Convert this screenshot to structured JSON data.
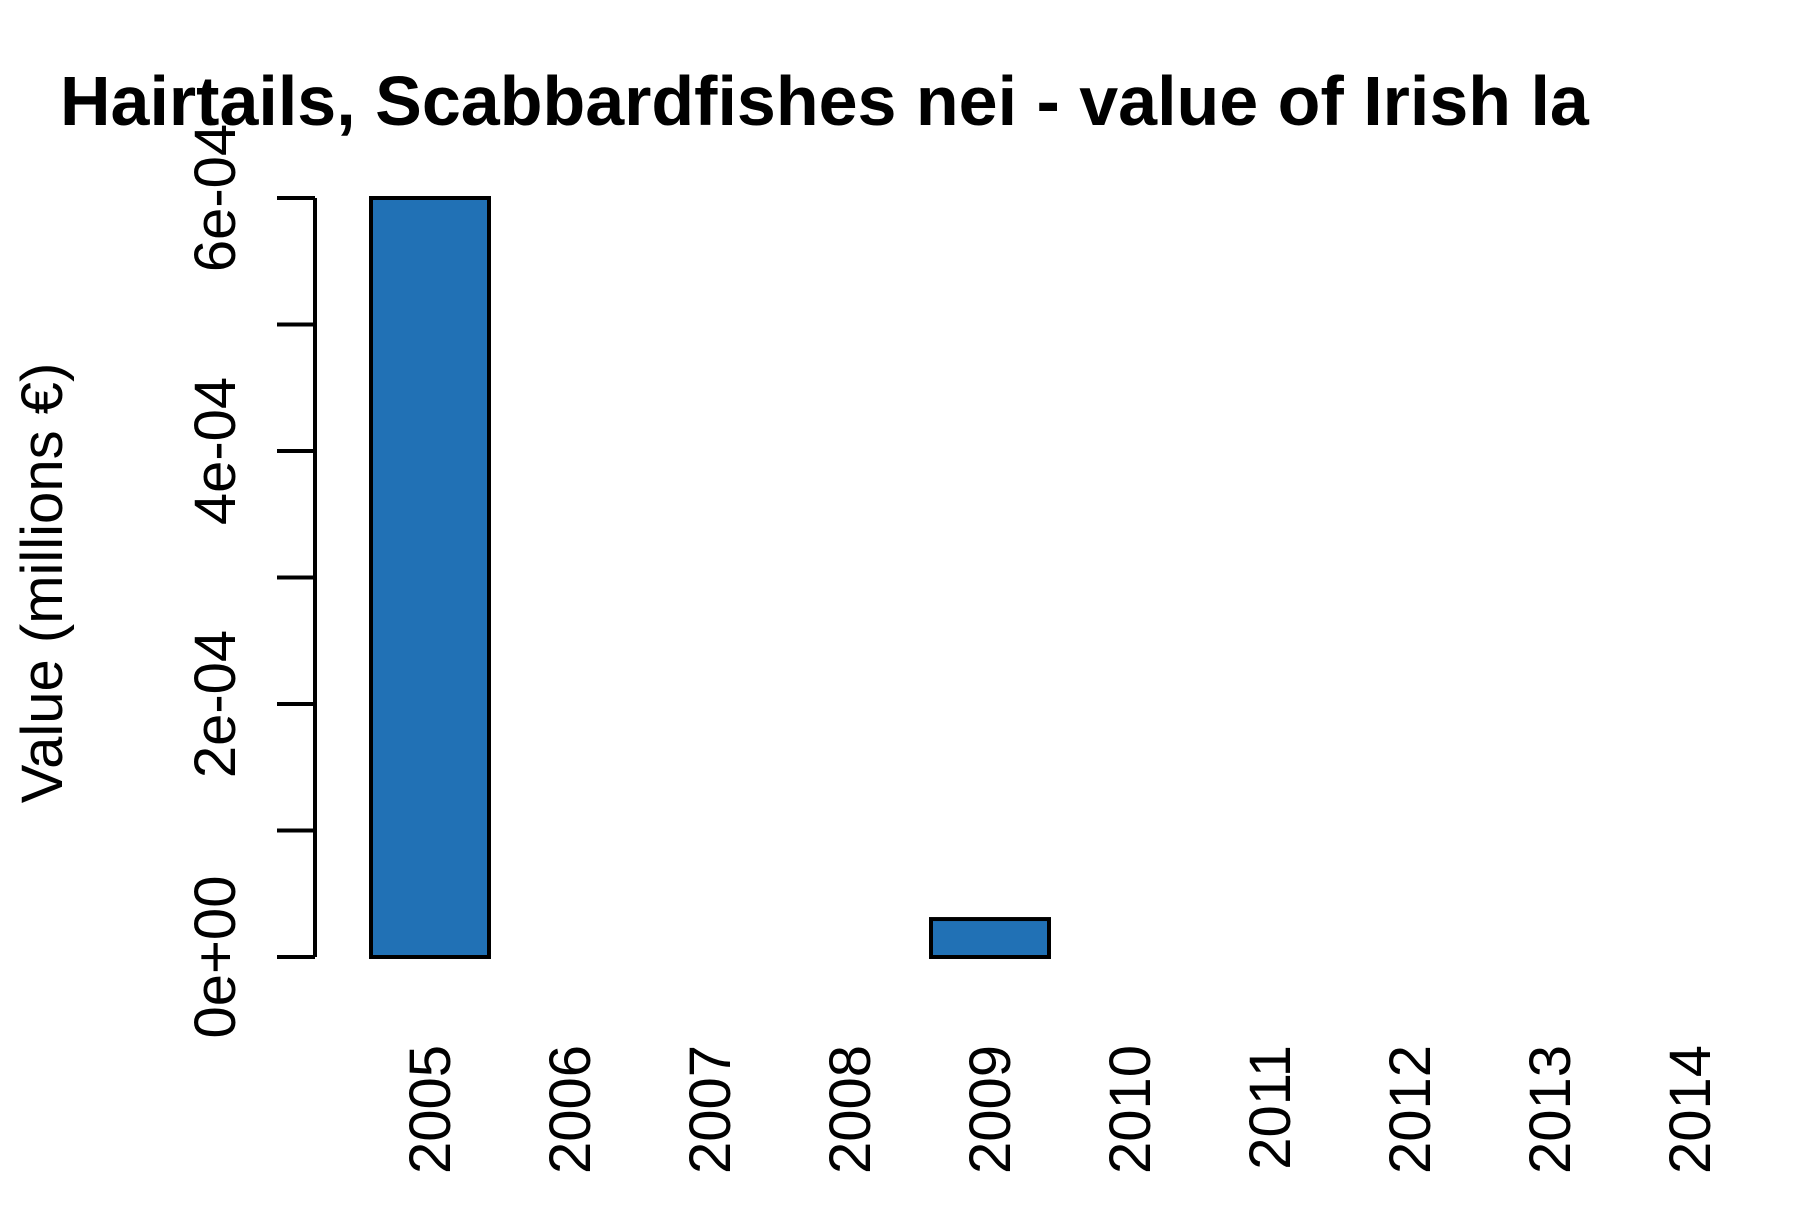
{
  "chart_data": {
    "type": "bar",
    "title": "Hairtails, Scabbardfishes nei - value of Irish la",
    "xlabel": "",
    "ylabel": "Value (millions €)",
    "categories": [
      "2005",
      "2006",
      "2007",
      "2008",
      "2009",
      "2010",
      "2011",
      "2012",
      "2013",
      "2014"
    ],
    "values": [
      0.0006,
      0,
      0,
      0,
      3e-05,
      0,
      0,
      0,
      0,
      0
    ],
    "ylim": [
      0,
      0.0006
    ],
    "yticks": [
      0,
      0.0001,
      0.0002,
      0.0003,
      0.0004,
      0.0005,
      0.0006
    ],
    "ytick_labels": [
      "0e+00",
      "",
      "2e-04",
      "",
      "4e-04",
      "",
      "6e-04"
    ],
    "bar_color": "#2171b5",
    "bar_outline": "#000000",
    "grid": false,
    "legend": "none"
  }
}
